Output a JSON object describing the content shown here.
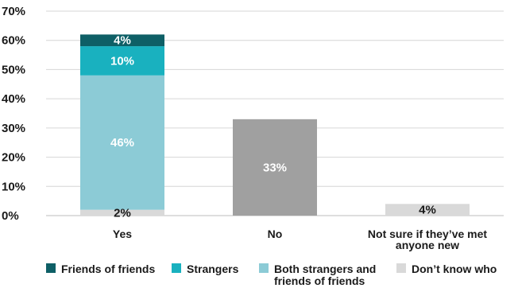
{
  "chart_data": {
    "type": "bar",
    "stacked": true,
    "categories": [
      "Yes",
      "No",
      "Not sure if they’ve met anyone new"
    ],
    "ylim": [
      0,
      70
    ],
    "yticks": [
      "0%",
      "10%",
      "20%",
      "30%",
      "40%",
      "50%",
      "60%",
      "70%"
    ],
    "grid": true,
    "legend_position": "bottom",
    "series": [
      {
        "name": "Don’t know who",
        "color": "#d9d9d9",
        "values": [
          2,
          null,
          4
        ],
        "labels": [
          "2%",
          null,
          "4%"
        ],
        "label_color": "#1a1a1a"
      },
      {
        "name": "Both strangers and friends of friends",
        "color": "#8ccbd6",
        "values": [
          46,
          null,
          null
        ],
        "labels": [
          "46%",
          null,
          null
        ],
        "label_color": "#ffffff"
      },
      {
        "name": "Strangers",
        "color": "#19b1bf",
        "values": [
          10,
          null,
          null
        ],
        "labels": [
          "10%",
          null,
          null
        ],
        "label_color": "#ffffff"
      },
      {
        "name": "Friends of friends",
        "color": "#0e5f66",
        "values": [
          4,
          null,
          null
        ],
        "labels": [
          "4%",
          null,
          null
        ],
        "label_color": "#ffffff"
      },
      {
        "name": "No",
        "color": "#a0a0a0",
        "values": [
          null,
          33,
          null
        ],
        "labels": [
          null,
          "33%",
          null
        ],
        "label_color": "#ffffff",
        "in_legend": false
      }
    ],
    "legend": [
      {
        "name": "Friends of friends",
        "color": "#0e5f66"
      },
      {
        "name": "Strangers",
        "color": "#19b1bf"
      },
      {
        "name": "Both strangers and friends of friends",
        "lines": [
          "Both strangers and",
          "friends of friends"
        ],
        "color": "#8ccbd6"
      },
      {
        "name": "Don’t know who",
        "color": "#d9d9d9"
      }
    ]
  }
}
